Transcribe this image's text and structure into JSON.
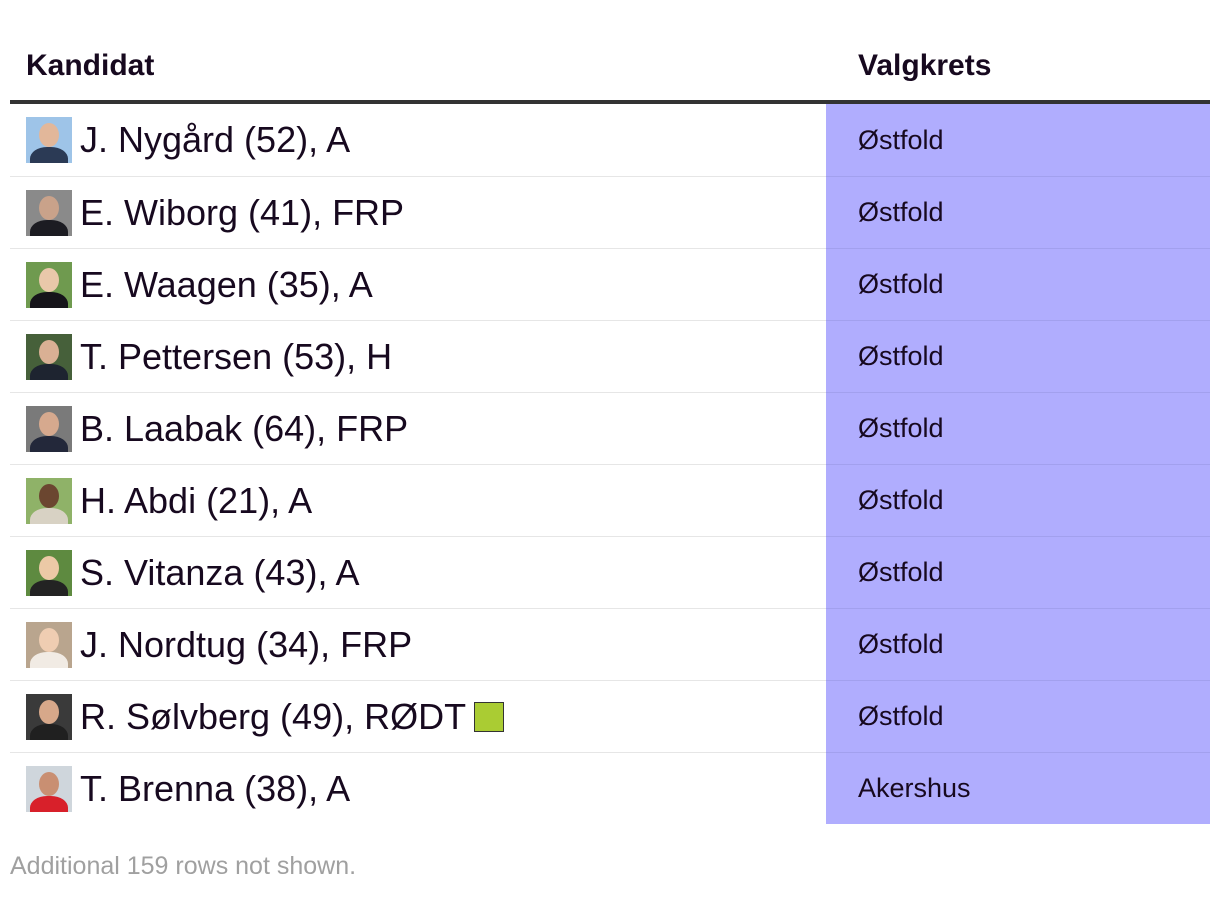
{
  "header": {
    "kandidat": "Kandidat",
    "valgkrets": "Valgkrets"
  },
  "rows": [
    {
      "name": "J. Nygård (52), A",
      "valgkrets": "Østfold",
      "photo_bg": "#9ec4e8",
      "skin": "#e2b79a",
      "clothes": "#2b3a55"
    },
    {
      "name": "E. Wiborg (41), FRP",
      "valgkrets": "Østfold",
      "photo_bg": "#8a8a8a",
      "skin": "#c9a28a",
      "clothes": "#1c1c22"
    },
    {
      "name": "E. Waagen (35), A",
      "valgkrets": "Østfold",
      "photo_bg": "#6f9a4f",
      "skin": "#e9c8aa",
      "clothes": "#16141a"
    },
    {
      "name": "T. Pettersen (53), H",
      "valgkrets": "Østfold",
      "photo_bg": "#46603a",
      "skin": "#d9b094",
      "clothes": "#1e2430"
    },
    {
      "name": "B. Laabak (64), FRP",
      "valgkrets": "Østfold",
      "photo_bg": "#7a7a7a",
      "skin": "#d6a98e",
      "clothes": "#23283a"
    },
    {
      "name": "H. Abdi (21), A",
      "valgkrets": "Østfold",
      "photo_bg": "#8fb268",
      "skin": "#6b4630",
      "clothes": "#d8d2c4"
    },
    {
      "name": "S. Vitanza (43), A",
      "valgkrets": "Østfold",
      "photo_bg": "#5e8a40",
      "skin": "#ecc9a6",
      "clothes": "#232323"
    },
    {
      "name": "J. Nordtug (34), FRP",
      "valgkrets": "Østfold",
      "photo_bg": "#b9a58e",
      "skin": "#efcdb2",
      "clothes": "#f1ebe4"
    },
    {
      "name": "R. Sølvberg (49), RØDT",
      "valgkrets": "Østfold",
      "photo_bg": "#3a3a3a",
      "skin": "#d7a88a",
      "clothes": "#202020",
      "party_color": "#aacc33"
    },
    {
      "name": "T. Brenna (38), A",
      "valgkrets": "Akershus",
      "photo_bg": "#cfd6dc",
      "skin": "#c98f72",
      "clothes": "#d8202a"
    }
  ],
  "footer": "Additional 159 rows not shown."
}
